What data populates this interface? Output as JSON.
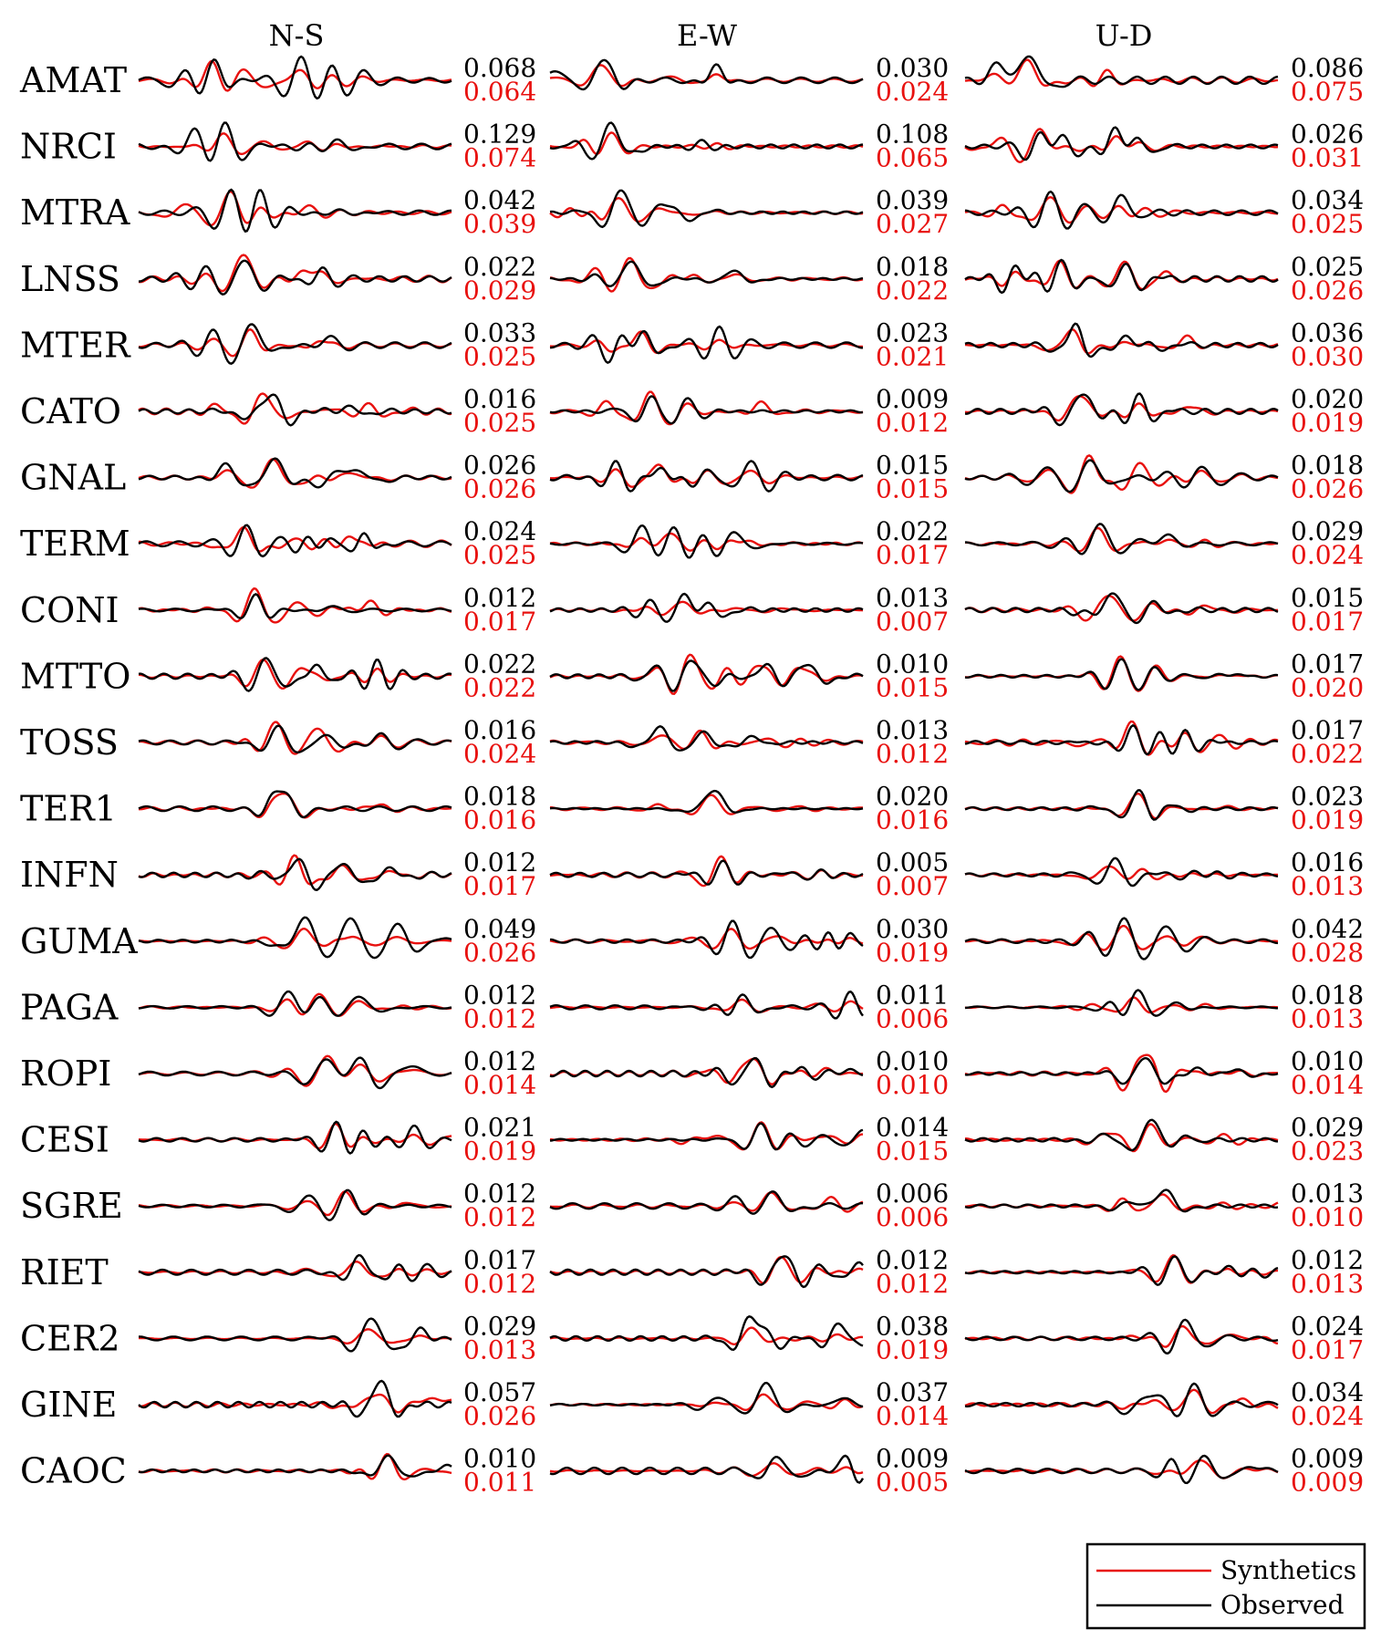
{
  "chart_data": {
    "type": "line",
    "title": "",
    "components": [
      "N-S",
      "E-W",
      "U-D"
    ],
    "legend": {
      "placement": "bottom-right",
      "entries": [
        {
          "name": "Synthetics",
          "color": "#e8110f"
        },
        {
          "name": "Observed",
          "color": "#000000"
        }
      ]
    },
    "colors": {
      "observed": "#000000",
      "synthetic": "#e8110f"
    },
    "stations": [
      {
        "name": "AMAT",
        "obs": [
          "0.068",
          "0.030",
          "0.086"
        ],
        "syn": [
          "0.064",
          "0.024",
          "0.075"
        ]
      },
      {
        "name": "NRCI",
        "obs": [
          "0.129",
          "0.108",
          "0.026"
        ],
        "syn": [
          "0.074",
          "0.065",
          "0.031"
        ]
      },
      {
        "name": "MTRA",
        "obs": [
          "0.042",
          "0.039",
          "0.034"
        ],
        "syn": [
          "0.039",
          "0.027",
          "0.025"
        ]
      },
      {
        "name": "LNSS",
        "obs": [
          "0.022",
          "0.018",
          "0.025"
        ],
        "syn": [
          "0.029",
          "0.022",
          "0.026"
        ]
      },
      {
        "name": "MTER",
        "obs": [
          "0.033",
          "0.023",
          "0.036"
        ],
        "syn": [
          "0.025",
          "0.021",
          "0.030"
        ]
      },
      {
        "name": "CATO",
        "obs": [
          "0.016",
          "0.009",
          "0.020"
        ],
        "syn": [
          "0.025",
          "0.012",
          "0.019"
        ]
      },
      {
        "name": "GNAL",
        "obs": [
          "0.026",
          "0.015",
          "0.018"
        ],
        "syn": [
          "0.026",
          "0.015",
          "0.026"
        ]
      },
      {
        "name": "TERM",
        "obs": [
          "0.024",
          "0.022",
          "0.029"
        ],
        "syn": [
          "0.025",
          "0.017",
          "0.024"
        ]
      },
      {
        "name": "CONI",
        "obs": [
          "0.012",
          "0.013",
          "0.015"
        ],
        "syn": [
          "0.017",
          "0.007",
          "0.017"
        ]
      },
      {
        "name": "MTTO",
        "obs": [
          "0.022",
          "0.010",
          "0.017"
        ],
        "syn": [
          "0.022",
          "0.015",
          "0.020"
        ]
      },
      {
        "name": "TOSS",
        "obs": [
          "0.016",
          "0.013",
          "0.017"
        ],
        "syn": [
          "0.024",
          "0.012",
          "0.022"
        ]
      },
      {
        "name": "TER1",
        "obs": [
          "0.018",
          "0.020",
          "0.023"
        ],
        "syn": [
          "0.016",
          "0.016",
          "0.019"
        ]
      },
      {
        "name": "INFN",
        "obs": [
          "0.012",
          "0.005",
          "0.016"
        ],
        "syn": [
          "0.017",
          "0.007",
          "0.013"
        ]
      },
      {
        "name": "GUMA",
        "obs": [
          "0.049",
          "0.030",
          "0.042"
        ],
        "syn": [
          "0.026",
          "0.019",
          "0.028"
        ]
      },
      {
        "name": "PAGA",
        "obs": [
          "0.012",
          "0.011",
          "0.018"
        ],
        "syn": [
          "0.012",
          "0.006",
          "0.013"
        ]
      },
      {
        "name": "ROPI",
        "obs": [
          "0.012",
          "0.010",
          "0.010"
        ],
        "syn": [
          "0.014",
          "0.010",
          "0.014"
        ]
      },
      {
        "name": "CESI",
        "obs": [
          "0.021",
          "0.014",
          "0.029"
        ],
        "syn": [
          "0.019",
          "0.015",
          "0.023"
        ]
      },
      {
        "name": "SGRE",
        "obs": [
          "0.012",
          "0.006",
          "0.013"
        ],
        "syn": [
          "0.012",
          "0.006",
          "0.010"
        ]
      },
      {
        "name": "RIET",
        "obs": [
          "0.017",
          "0.012",
          "0.012"
        ],
        "syn": [
          "0.012",
          "0.012",
          "0.013"
        ]
      },
      {
        "name": "CER2",
        "obs": [
          "0.029",
          "0.038",
          "0.024"
        ],
        "syn": [
          "0.013",
          "0.019",
          "0.017"
        ]
      },
      {
        "name": "GINE",
        "obs": [
          "0.057",
          "0.037",
          "0.034"
        ],
        "syn": [
          "0.026",
          "0.014",
          "0.024"
        ]
      },
      {
        "name": "CAOC",
        "obs": [
          "0.010",
          "0.009",
          "0.009"
        ],
        "syn": [
          "0.011",
          "0.005",
          "0.009"
        ]
      }
    ]
  }
}
